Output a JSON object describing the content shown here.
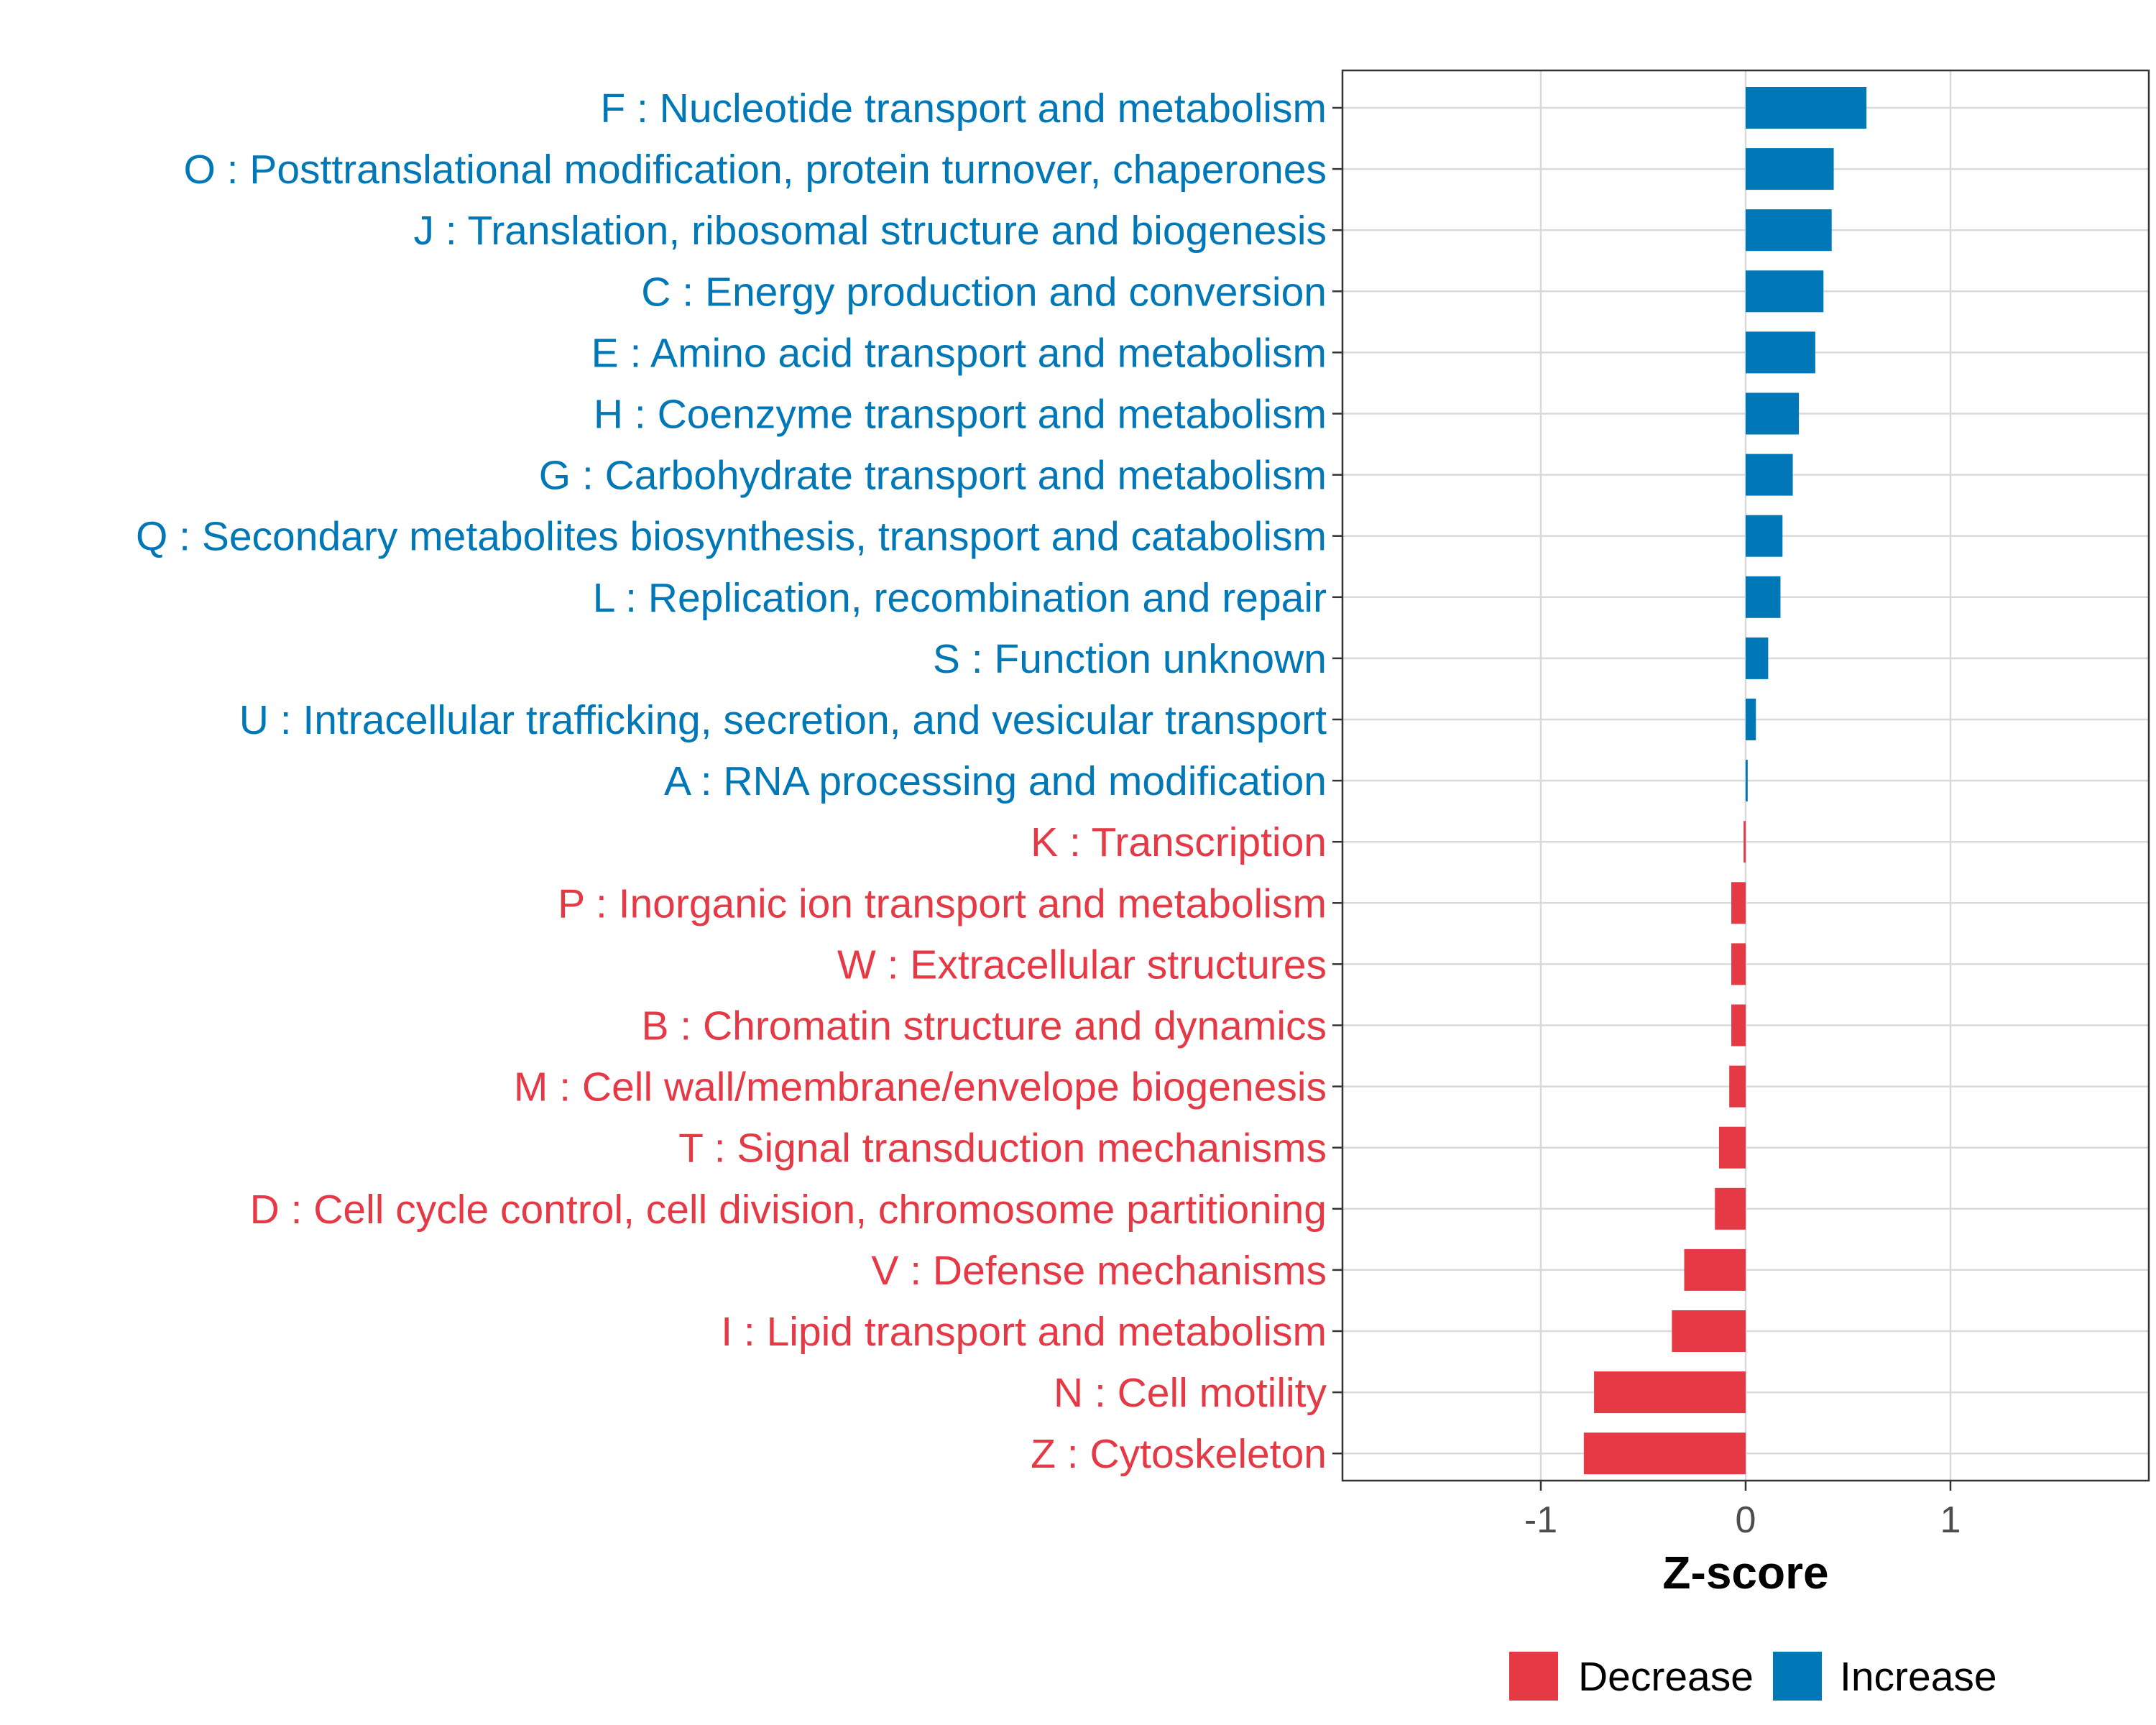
{
  "chart_data": {
    "type": "bar",
    "orientation": "horizontal",
    "title": "",
    "xlabel": "Z-score",
    "ylabel": "",
    "xlim": [
      -1.97,
      1.97
    ],
    "xticks": [
      -1,
      0,
      1
    ],
    "xtick_labels": [
      "-1",
      "0",
      "1"
    ],
    "grid": true,
    "legend_position": "bottom",
    "colors": {
      "Decrease": "#E63946",
      "Increase": "#0077B6"
    },
    "legend": [
      {
        "label": "Decrease",
        "color": "#E63946"
      },
      {
        "label": "Increase",
        "color": "#0077B6"
      }
    ],
    "bars": [
      {
        "label": "F : Nucleotide transport and metabolism",
        "value": 0.59,
        "group": "Increase"
      },
      {
        "label": "O : Posttranslational modification, protein turnover, chaperones",
        "value": 0.43,
        "group": "Increase"
      },
      {
        "label": "J : Translation, ribosomal structure and biogenesis",
        "value": 0.42,
        "group": "Increase"
      },
      {
        "label": "C : Energy production and conversion",
        "value": 0.38,
        "group": "Increase"
      },
      {
        "label": "E : Amino acid transport and metabolism",
        "value": 0.34,
        "group": "Increase"
      },
      {
        "label": "H : Coenzyme transport and metabolism",
        "value": 0.26,
        "group": "Increase"
      },
      {
        "label": "G : Carbohydrate transport and metabolism",
        "value": 0.23,
        "group": "Increase"
      },
      {
        "label": "Q : Secondary metabolites biosynthesis, transport and catabolism",
        "value": 0.18,
        "group": "Increase"
      },
      {
        "label": "L : Replication, recombination and repair",
        "value": 0.17,
        "group": "Increase"
      },
      {
        "label": "S : Function unknown",
        "value": 0.11,
        "group": "Increase"
      },
      {
        "label": "U : Intracellular trafficking, secretion, and vesicular transport",
        "value": 0.05,
        "group": "Increase"
      },
      {
        "label": "A : RNA processing and modification",
        "value": 0.01,
        "group": "Increase"
      },
      {
        "label": "K : Transcription",
        "value": -0.01,
        "group": "Decrease"
      },
      {
        "label": "P : Inorganic ion transport and metabolism",
        "value": -0.07,
        "group": "Decrease"
      },
      {
        "label": "W : Extracellular structures",
        "value": -0.07,
        "group": "Decrease"
      },
      {
        "label": "B : Chromatin structure and dynamics",
        "value": -0.07,
        "group": "Decrease"
      },
      {
        "label": "M : Cell wall/membrane/envelope biogenesis",
        "value": -0.08,
        "group": "Decrease"
      },
      {
        "label": "T : Signal transduction mechanisms",
        "value": -0.13,
        "group": "Decrease"
      },
      {
        "label": "D : Cell cycle control, cell division, chromosome partitioning",
        "value": -0.15,
        "group": "Decrease"
      },
      {
        "label": "V : Defense mechanisms",
        "value": -0.3,
        "group": "Decrease"
      },
      {
        "label": "I : Lipid transport and metabolism",
        "value": -0.36,
        "group": "Decrease"
      },
      {
        "label": "N : Cell motility",
        "value": -0.74,
        "group": "Decrease"
      },
      {
        "label": "Z : Cytoskeleton",
        "value": -0.79,
        "group": "Decrease"
      }
    ]
  }
}
